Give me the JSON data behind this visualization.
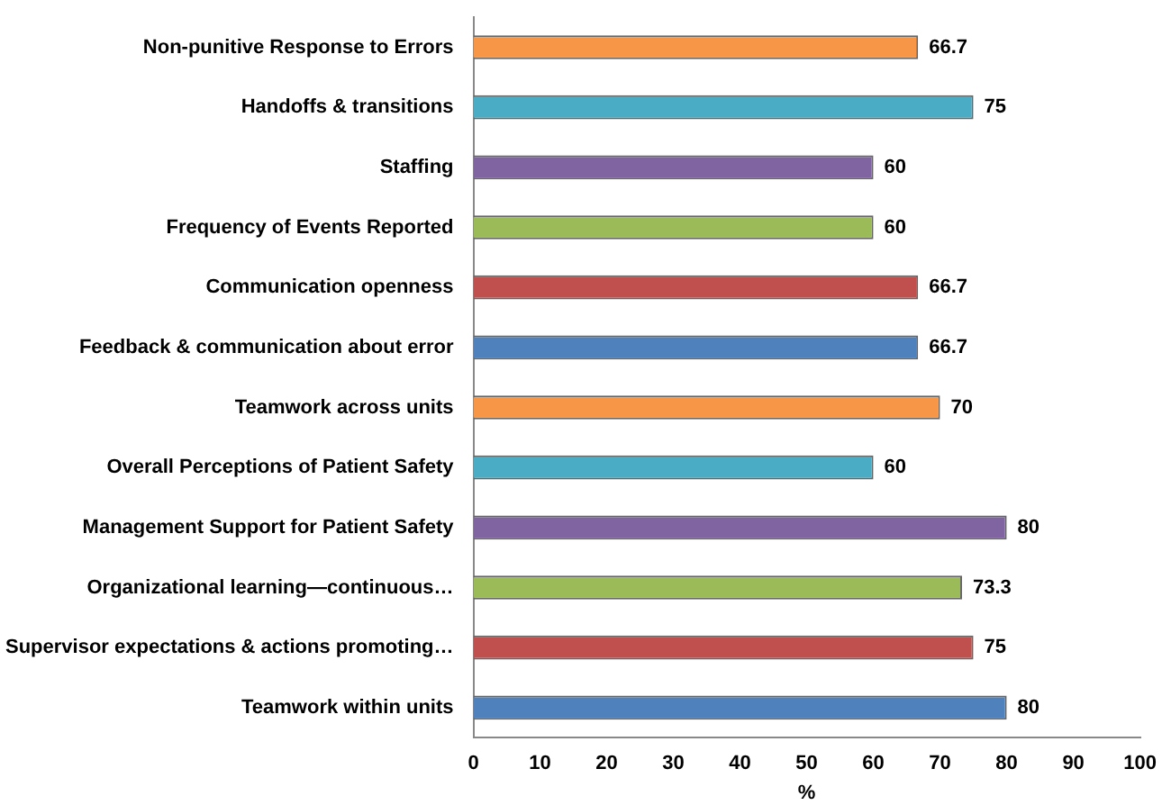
{
  "chart_data": {
    "type": "bar",
    "orientation": "horizontal",
    "xlabel": "%",
    "categories": [
      "Non-punitive Response to Errors",
      "Handoffs & transitions",
      "Staffing",
      "Frequency of Events Reported",
      "Communication openness",
      "Feedback & communication about error",
      "Teamwork across units",
      "Overall Perceptions of Patient Safety",
      "Management Support for Patient Safety",
      "Organizational learning—continuous…",
      "Supervisor expectations & actions promoting…",
      "Teamwork within units"
    ],
    "values": [
      66.7,
      75,
      60,
      60,
      66.7,
      66.7,
      70,
      60,
      80,
      73.3,
      75,
      80
    ],
    "colors": [
      "#f79646",
      "#4bacc6",
      "#8064a2",
      "#9bbb59",
      "#c0504d",
      "#4f81bd",
      "#f79646",
      "#4bacc6",
      "#8064a2",
      "#9bbb59",
      "#c0504d",
      "#4f81bd"
    ],
    "xlim": [
      0,
      100
    ],
    "xticks": [
      0,
      10,
      20,
      30,
      40,
      50,
      60,
      70,
      80,
      90,
      100
    ],
    "data_labels": true,
    "grid": false,
    "legend": false
  }
}
